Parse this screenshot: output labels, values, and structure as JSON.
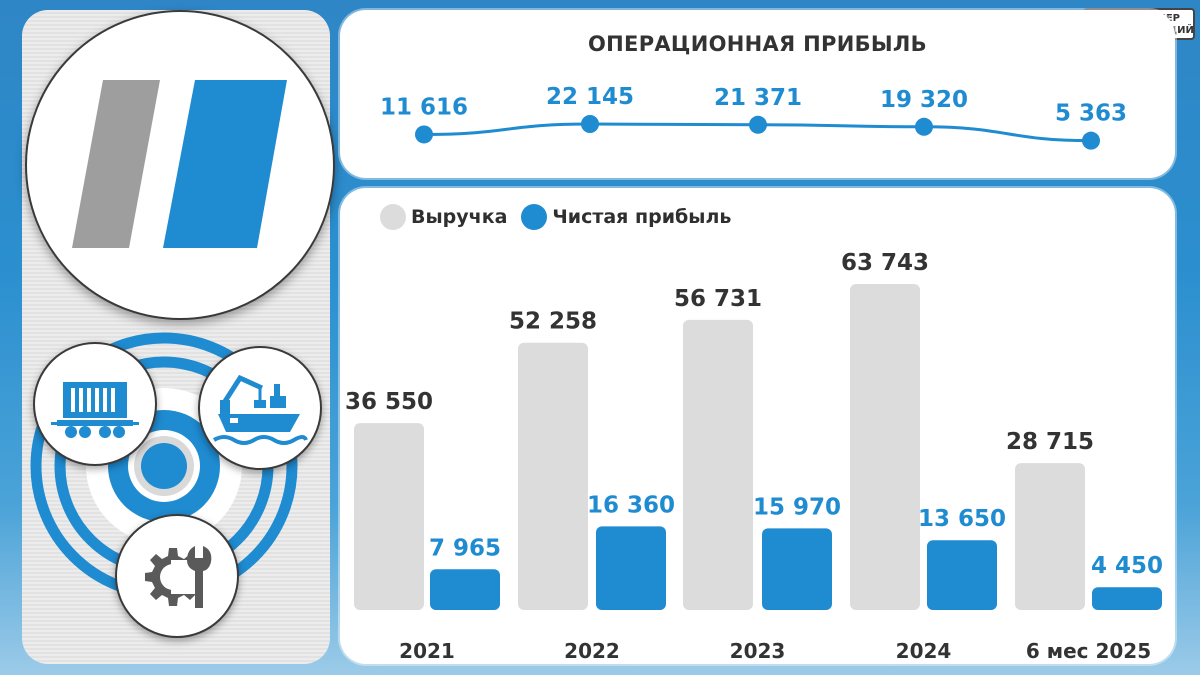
{
  "source_badge": {
    "line1": "БУНКЕР",
    "line2": "ОБЛИГАЦИЙ",
    "icon": "bunker-icon"
  },
  "left_panel": {
    "logo_icon": "company-logo-stripes",
    "badges": [
      {
        "icon": "railcar-icon"
      },
      {
        "icon": "port-ship-crane-icon"
      },
      {
        "icon": "gear-wrench-icon"
      }
    ]
  },
  "colors": {
    "revenue": "#dcdcdc",
    "net_profit": "#1f8bd1",
    "operating": "#1f8bd1",
    "text_dark": "#333333"
  },
  "chart_data": [
    {
      "type": "line",
      "title": "ОПЕРАЦИОННАЯ ПРИБЫЛЬ",
      "categories": [
        "2021",
        "2022",
        "2023",
        "2024",
        "6 мес 2025"
      ],
      "series": [
        {
          "name": "Операционная прибыль",
          "values": [
            11616,
            22145,
            21371,
            19320,
            5363
          ],
          "labels": [
            "11 616",
            "22 145",
            "21 371",
            "19 320",
            "5 363"
          ]
        }
      ]
    },
    {
      "type": "bar",
      "categories": [
        "2021",
        "2022",
        "2023",
        "2024",
        "6 мес 2025"
      ],
      "legend": "top-left",
      "series": [
        {
          "name": "Выручка",
          "values": [
            36550,
            52258,
            56731,
            63743,
            28715
          ],
          "labels": [
            "36 550",
            "52 258",
            "56 731",
            "63 743",
            "28 715"
          ]
        },
        {
          "name": "Чистая прибыль",
          "values": [
            7965,
            16360,
            15970,
            13650,
            4450
          ],
          "labels": [
            "7 965",
            "16 360",
            "15 970",
            "13 650",
            "4 450"
          ]
        }
      ]
    }
  ]
}
